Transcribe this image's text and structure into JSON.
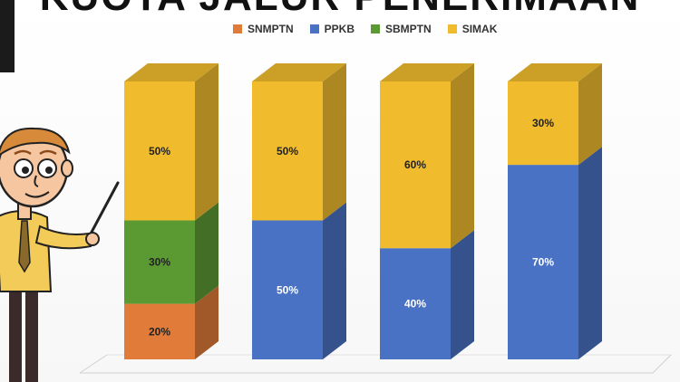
{
  "page_title": "KUOTA JALUR PENERIMAAN",
  "chart_data": {
    "type": "bar",
    "stacked": true,
    "three_d": true,
    "categories": [
      "",
      "",
      "",
      ""
    ],
    "series": [
      {
        "name": "SNMPTN",
        "color": "#e07b39",
        "values": [
          20,
          0,
          0,
          0
        ]
      },
      {
        "name": "PPKB",
        "color": "#4a72c4",
        "values": [
          0,
          50,
          40,
          70
        ]
      },
      {
        "name": "SBMPTN",
        "color": "#5b9a33",
        "values": [
          30,
          0,
          0,
          0
        ]
      },
      {
        "name": "SIMAK",
        "color": "#f0bc2e",
        "values": [
          50,
          50,
          60,
          30
        ]
      }
    ],
    "value_labels": [
      [
        "20%",
        "30%",
        "50%"
      ],
      [
        "50%",
        "50%"
      ],
      [
        "40%",
        "60%"
      ],
      [
        "70%",
        "30%"
      ]
    ],
    "stack_order": [
      "SNMPTN",
      "PPKB",
      "SBMPTN",
      "SIMAK"
    ],
    "ylim": [
      0,
      100
    ],
    "legend_position": "top",
    "grid": false
  },
  "illustration": {
    "figure": "cartoon-presenter-with-pointer"
  }
}
